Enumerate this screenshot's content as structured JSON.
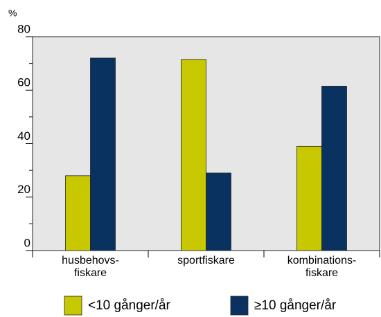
{
  "chart_data": {
    "type": "bar",
    "y_label": "%",
    "categories": [
      "husbehovs-\nfiskare",
      "sportfiskare",
      "kombinations-\nfiskare"
    ],
    "series": [
      {
        "name": "<10 gånger/år",
        "color": "#c8c800",
        "values": [
          28,
          71.5,
          39
        ]
      },
      {
        "name": "≥10 gånger/år",
        "color": "#0a3261",
        "values": [
          72,
          29,
          61.5
        ]
      }
    ],
    "ylim": [
      0,
      80
    ],
    "yticks": [
      0,
      20,
      40,
      60,
      80
    ],
    "minor_yticks": [
      10,
      30,
      50,
      70
    ],
    "background": "#e6e6e6",
    "legend": "bottom"
  }
}
